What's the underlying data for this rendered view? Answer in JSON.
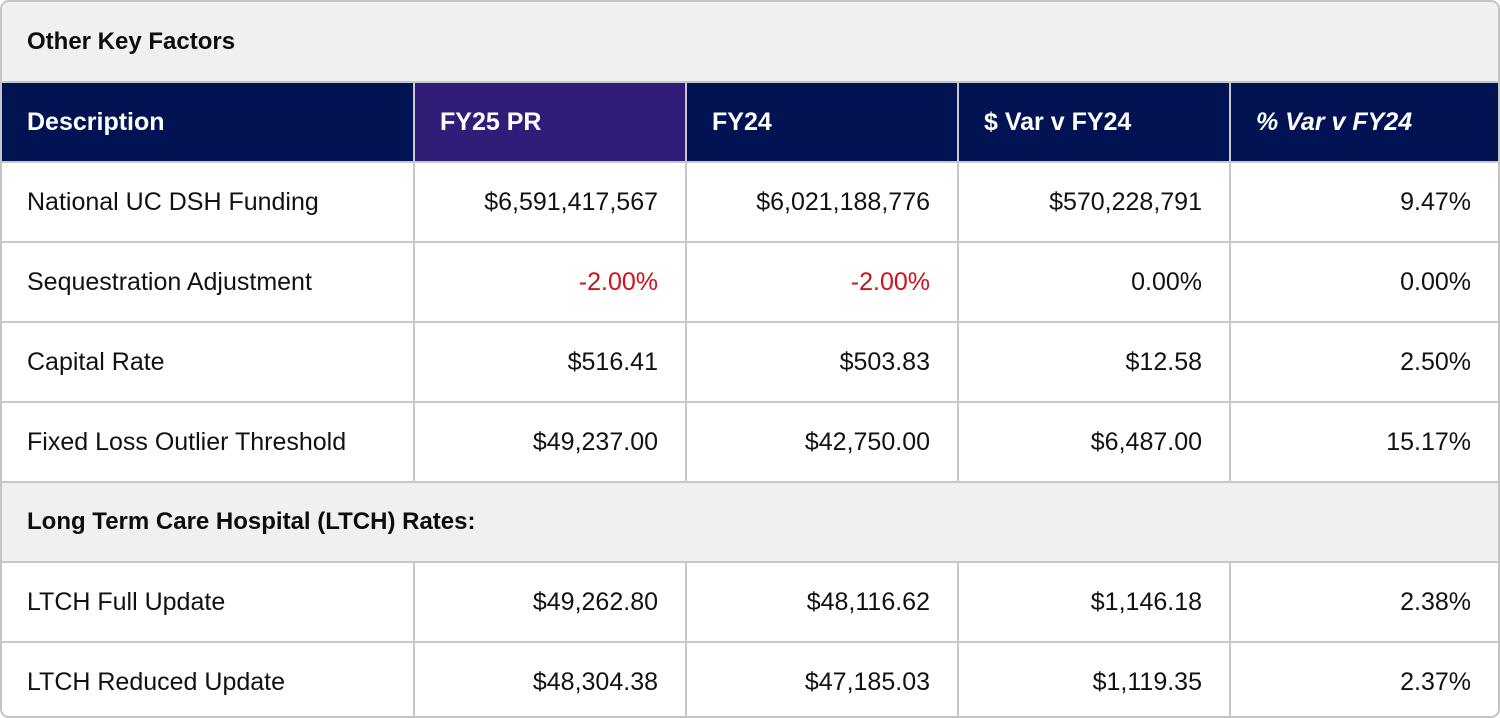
{
  "title": "Other Key Factors",
  "colors": {
    "header_bg": "#021353",
    "header_highlight_bg": "#311d78",
    "section_bg": "#f0f0f0",
    "negative_text": "#d0101a",
    "border": "#c8c8c8"
  },
  "columns": [
    {
      "label": "Description"
    },
    {
      "label": "FY25 PR"
    },
    {
      "label": "FY24"
    },
    {
      "label": "$ Var v FY24"
    },
    {
      "label": "% Var v FY24"
    }
  ],
  "rows": [
    {
      "description": "National UC DSH Funding",
      "fy25_pr": "$6,591,417,567",
      "fy24": "$6,021,188,776",
      "dollar_var": "$570,228,791",
      "pct_var": "9.47%"
    },
    {
      "description": "Sequestration Adjustment",
      "fy25_pr": "-2.00%",
      "fy24": "-2.00%",
      "dollar_var": "0.00%",
      "pct_var": "0.00%"
    },
    {
      "description": "Capital Rate",
      "fy25_pr": "$516.41",
      "fy24": "$503.83",
      "dollar_var": "$12.58",
      "pct_var": "2.50%"
    },
    {
      "description": "Fixed Loss Outlier Threshold",
      "fy25_pr": "$49,237.00",
      "fy24": "$42,750.00",
      "dollar_var": "$6,487.00",
      "pct_var": "15.17%"
    }
  ],
  "ltch_section": {
    "title": "Long Term Care  Hospital (LTCH) Rates:",
    "rows": [
      {
        "description": "LTCH Full Update",
        "fy25_pr": "$49,262.80",
        "fy24": "$48,116.62",
        "dollar_var": "$1,146.18",
        "pct_var": "2.38%"
      },
      {
        "description": "LTCH Reduced Update",
        "fy25_pr": "$48,304.38",
        "fy24": "$47,185.03",
        "dollar_var": "$1,119.35",
        "pct_var": "2.37%"
      }
    ]
  }
}
